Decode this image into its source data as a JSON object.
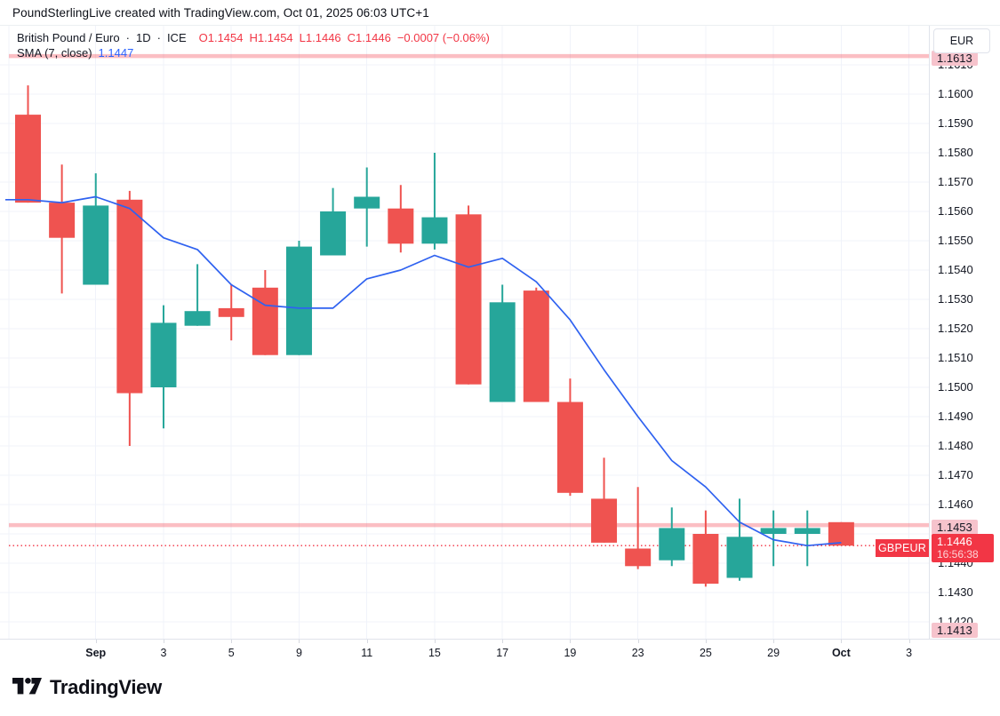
{
  "header": {
    "attribution": "PoundSterlingLive created with TradingView.com, Oct 01, 2025 06:03 UTC+1"
  },
  "legend": {
    "title": "British Pound / Euro",
    "dot": "·",
    "interval": "1D",
    "exchange": "ICE",
    "o_label": "O",
    "o": "1.1454",
    "h_label": "H",
    "h": "1.1454",
    "l_label": "L",
    "l": "1.1446",
    "c_label": "C",
    "c": "1.1446",
    "change": "−0.0007 (−0.06%)",
    "sma_title": "SMA (7, close)",
    "sma_value": "1.1447"
  },
  "axis": {
    "currency": "EUR",
    "symbol_tag": "GBPEUR",
    "pinned": {
      "upper": "1.1613",
      "mid": "1.1453",
      "last_price": "1.1446",
      "countdown": "16:56:38",
      "lower": "1.1413"
    }
  },
  "time_axis": {
    "labels": [
      {
        "text": "Sep",
        "ci": 2,
        "bold": true
      },
      {
        "text": "3",
        "ci": 4,
        "bold": false
      },
      {
        "text": "5",
        "ci": 6,
        "bold": false
      },
      {
        "text": "9",
        "ci": 8,
        "bold": false
      },
      {
        "text": "11",
        "ci": 10,
        "bold": false
      },
      {
        "text": "15",
        "ci": 12,
        "bold": false
      },
      {
        "text": "17",
        "ci": 14,
        "bold": false
      },
      {
        "text": "19",
        "ci": 16,
        "bold": false
      },
      {
        "text": "23",
        "ci": 18,
        "bold": false
      },
      {
        "text": "25",
        "ci": 20,
        "bold": false
      },
      {
        "text": "29",
        "ci": 22,
        "bold": false
      },
      {
        "text": "Oct",
        "ci": 24,
        "bold": true
      },
      {
        "text": "3",
        "ci": 26,
        "bold": false
      }
    ]
  },
  "footer": {
    "brand": "TradingView"
  },
  "colors": {
    "up": "#26a69a",
    "down": "#ef5350",
    "sma": "#2f62f0",
    "grid": "#f0f3fa",
    "level_pink": "rgba(242,54,69,0.32)",
    "last_price_red": "#f23645",
    "text": "#131722",
    "border": "#e0e3eb"
  },
  "chart_data": {
    "type": "candlestick",
    "symbol": "GBPEUR",
    "title": "British Pound / Euro, 1D, ICE",
    "ylabel": "EUR",
    "y_axis": {
      "min": 1.1413,
      "max": 1.162,
      "tick_step": 0.001,
      "tick_labels": [
        "1.1610",
        "1.1600",
        "1.1590",
        "1.1580",
        "1.1570",
        "1.1560",
        "1.1550",
        "1.1540",
        "1.1530",
        "1.1520",
        "1.1510",
        "1.1500",
        "1.1490",
        "1.1480",
        "1.1470",
        "1.1460",
        "1.1450",
        "1.1440",
        "1.1430",
        "1.1420"
      ]
    },
    "grid": true,
    "legend_position": "top-left",
    "candles": [
      {
        "date": "Aug 28",
        "o": 1.1593,
        "h": 1.1603,
        "l": 1.1563,
        "c": 1.1563
      },
      {
        "date": "Aug 29",
        "o": 1.1563,
        "h": 1.1576,
        "l": 1.1532,
        "c": 1.1551
      },
      {
        "date": "Sep 1",
        "o": 1.1535,
        "h": 1.1573,
        "l": 1.1535,
        "c": 1.1562
      },
      {
        "date": "Sep 2",
        "o": 1.1564,
        "h": 1.1567,
        "l": 1.148,
        "c": 1.1498
      },
      {
        "date": "Sep 3",
        "o": 1.15,
        "h": 1.1528,
        "l": 1.1486,
        "c": 1.1522
      },
      {
        "date": "Sep 4",
        "o": 1.1521,
        "h": 1.1542,
        "l": 1.1521,
        "c": 1.1526
      },
      {
        "date": "Sep 5",
        "o": 1.1527,
        "h": 1.1535,
        "l": 1.1516,
        "c": 1.1524
      },
      {
        "date": "Sep 8",
        "o": 1.1534,
        "h": 1.154,
        "l": 1.1511,
        "c": 1.1511
      },
      {
        "date": "Sep 9",
        "o": 1.1511,
        "h": 1.155,
        "l": 1.1511,
        "c": 1.1548
      },
      {
        "date": "Sep 10",
        "o": 1.1545,
        "h": 1.1568,
        "l": 1.1545,
        "c": 1.156
      },
      {
        "date": "Sep 11",
        "o": 1.1561,
        "h": 1.1575,
        "l": 1.1548,
        "c": 1.1565
      },
      {
        "date": "Sep 12",
        "o": 1.1561,
        "h": 1.1569,
        "l": 1.1546,
        "c": 1.1549
      },
      {
        "date": "Sep 15",
        "o": 1.1549,
        "h": 1.158,
        "l": 1.1547,
        "c": 1.1558
      },
      {
        "date": "Sep 16",
        "o": 1.1559,
        "h": 1.1562,
        "l": 1.1501,
        "c": 1.1501
      },
      {
        "date": "Sep 17",
        "o": 1.1495,
        "h": 1.1535,
        "l": 1.1495,
        "c": 1.1529
      },
      {
        "date": "Sep 18",
        "o": 1.1533,
        "h": 1.1534,
        "l": 1.1495,
        "c": 1.1495
      },
      {
        "date": "Sep 19",
        "o": 1.1495,
        "h": 1.1503,
        "l": 1.1463,
        "c": 1.1464
      },
      {
        "date": "Sep 22",
        "o": 1.1462,
        "h": 1.1476,
        "l": 1.1447,
        "c": 1.1447
      },
      {
        "date": "Sep 23",
        "o": 1.1445,
        "h": 1.1466,
        "l": 1.1438,
        "c": 1.1439
      },
      {
        "date": "Sep 24",
        "o": 1.1441,
        "h": 1.1459,
        "l": 1.1439,
        "c": 1.1452
      },
      {
        "date": "Sep 25",
        "o": 1.145,
        "h": 1.1458,
        "l": 1.1432,
        "c": 1.1433
      },
      {
        "date": "Sep 26",
        "o": 1.1435,
        "h": 1.1462,
        "l": 1.1434,
        "c": 1.1449
      },
      {
        "date": "Sep 29",
        "o": 1.145,
        "h": 1.1458,
        "l": 1.1439,
        "c": 1.1452
      },
      {
        "date": "Sep 30",
        "o": 1.145,
        "h": 1.1458,
        "l": 1.1439,
        "c": 1.1452
      },
      {
        "date": "Oct 1",
        "o": 1.1454,
        "h": 1.1454,
        "l": 1.1446,
        "c": 1.1446
      }
    ],
    "series": [
      {
        "name": "SMA (7, close)",
        "type": "line",
        "values": [
          1.1564,
          1.1563,
          1.1565,
          1.1561,
          1.1551,
          1.1547,
          1.1535,
          1.1528,
          1.1527,
          1.1527,
          1.1537,
          1.154,
          1.1545,
          1.1541,
          1.1544,
          1.1536,
          1.1523,
          1.1506,
          1.149,
          1.1475,
          1.1466,
          1.1454,
          1.1448,
          1.1446,
          1.1447
        ]
      }
    ],
    "levels": [
      {
        "price": 1.1613,
        "style": "solid",
        "role": "resistance"
      },
      {
        "price": 1.1453,
        "style": "solid",
        "role": "support"
      },
      {
        "price": 1.1446,
        "style": "dotted",
        "role": "last-price"
      },
      {
        "price": 1.1413,
        "style": "label-only",
        "role": "support"
      }
    ]
  }
}
